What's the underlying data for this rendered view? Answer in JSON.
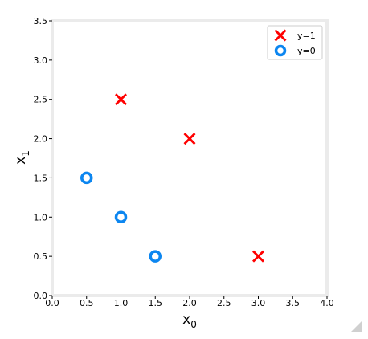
{
  "chart_data": {
    "type": "scatter",
    "xlim": [
      0,
      4
    ],
    "ylim": [
      0,
      3.5
    ],
    "xticks": [
      "0.0",
      "0.5",
      "1.0",
      "1.5",
      "2.0",
      "2.5",
      "3.0",
      "3.5",
      "4.0"
    ],
    "yticks": [
      "0.0",
      "0.5",
      "1.0",
      "1.5",
      "2.0",
      "2.5",
      "3.0",
      "3.5"
    ],
    "xlabel": {
      "base": "x",
      "sub": "0"
    },
    "ylabel": {
      "base": "x",
      "sub": "1"
    },
    "grid": false,
    "legend_position": "top-right",
    "series": [
      {
        "name": "y=1",
        "marker": "x",
        "color": "#ff0000",
        "points": [
          [
            1.0,
            2.5
          ],
          [
            2.0,
            2.0
          ],
          [
            3.0,
            0.5
          ]
        ]
      },
      {
        "name": "y=0",
        "marker": "o",
        "color": "#0c86f0",
        "points": [
          [
            0.5,
            1.5
          ],
          [
            1.0,
            1.0
          ],
          [
            1.5,
            0.5
          ]
        ]
      }
    ]
  }
}
